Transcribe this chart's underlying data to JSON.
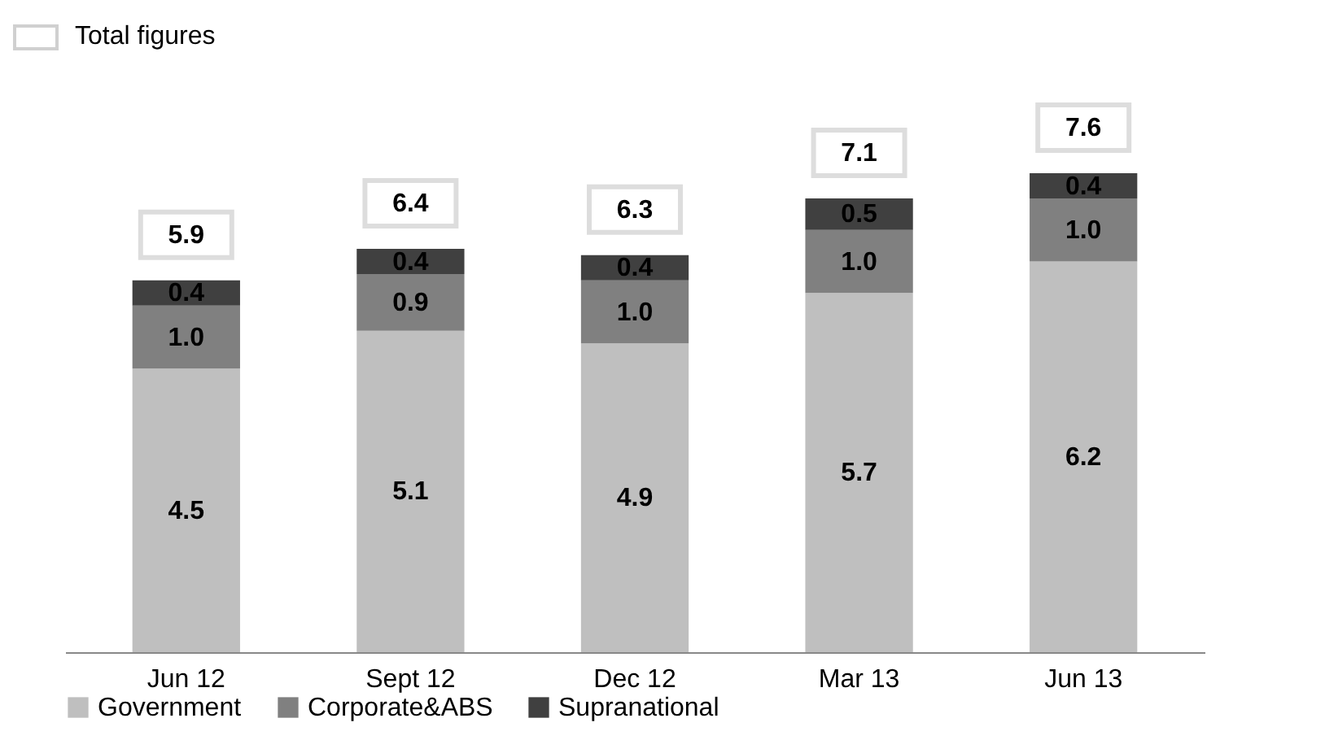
{
  "chart_data": {
    "type": "bar",
    "stacked": true,
    "legend": "bottom",
    "categories": [
      "Jun 12",
      "Sept 12",
      "Dec 12",
      "Mar 13",
      "Jun 13"
    ],
    "series": [
      {
        "name": "Government",
        "color": "#bfbfbf",
        "values": [
          4.5,
          5.1,
          4.9,
          5.7,
          6.2
        ],
        "value_labels": [
          "4.5",
          "5.1",
          "4.9",
          "5.7",
          "6.2"
        ]
      },
      {
        "name": "Corporate&ABS",
        "color": "#808080",
        "values": [
          1.0,
          0.9,
          1.0,
          1.0,
          1.0
        ],
        "value_labels": [
          "1.0",
          "0.9",
          "1.0",
          "1.0",
          "1.0"
        ]
      },
      {
        "name": "Supranational",
        "color": "#404040",
        "values": [
          0.4,
          0.4,
          0.4,
          0.5,
          0.4
        ],
        "value_labels": [
          "0.4",
          "0.4",
          "0.4",
          "0.5",
          "0.4"
        ]
      }
    ],
    "totals": [
      "5.9",
      "6.4",
      "6.3",
      "7.1",
      "7.6"
    ],
    "annotations": [
      "Total figures"
    ]
  }
}
